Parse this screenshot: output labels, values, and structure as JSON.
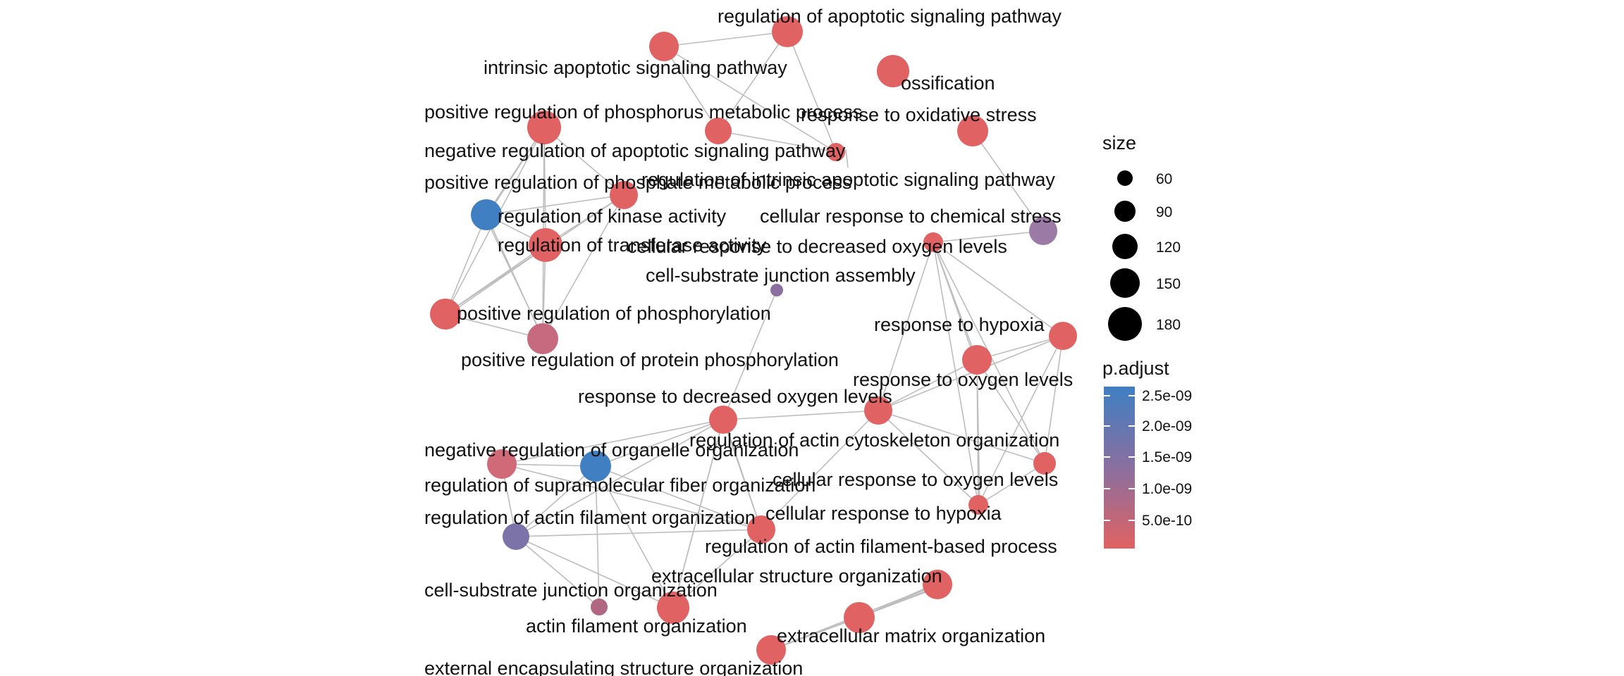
{
  "legend": {
    "size_title": "size",
    "size_values": [
      "60",
      "90",
      "120",
      "150",
      "180"
    ],
    "color_title": "p.adjust",
    "color_ticks": [
      "2.5e-09",
      "2.0e-09",
      "1.5e-09",
      "1.0e-09",
      "5.0e-10"
    ],
    "gradient_top": "#3f7fc2",
    "gradient_mid": "#8a6fa0",
    "gradient_bottom": "#e06262",
    "node_color_low": "#e06262"
  },
  "nodes": [
    {
      "id": "n1",
      "label": "regulation of apoptotic signaling pathway"
    },
    {
      "id": "n2",
      "label": "intrinsic apoptotic signaling pathway"
    },
    {
      "id": "n3",
      "label": "ossification"
    },
    {
      "id": "n4",
      "label": "positive regulation of phosphorus metabolic process"
    },
    {
      "id": "n5",
      "label": "response to oxidative stress"
    },
    {
      "id": "n6",
      "label": "negative regulation of apoptotic signaling pathway"
    },
    {
      "id": "n7",
      "label": "positive regulation of phosphate metabolic process"
    },
    {
      "id": "n8",
      "label": "regulation of intrinsic apoptotic signaling pathway"
    },
    {
      "id": "n9",
      "label": "regulation of kinase activity"
    },
    {
      "id": "n10",
      "label": "cellular response to chemical stress"
    },
    {
      "id": "n11",
      "label": "regulation of transferase activity"
    },
    {
      "id": "n12",
      "label": "cellular response to decreased oxygen levels"
    },
    {
      "id": "n13",
      "label": "cell-substrate junction assembly"
    },
    {
      "id": "n14",
      "label": "positive regulation of phosphorylation"
    },
    {
      "id": "n15",
      "label": "response to hypoxia"
    },
    {
      "id": "n16",
      "label": "positive regulation of protein phosphorylation"
    },
    {
      "id": "n17",
      "label": "response to oxygen levels"
    },
    {
      "id": "n18",
      "label": "response to decreased oxygen levels"
    },
    {
      "id": "n19",
      "label": "regulation of actin cytoskeleton organization"
    },
    {
      "id": "n20",
      "label": "negative regulation of organelle organization"
    },
    {
      "id": "n21",
      "label": "cellular response to oxygen levels"
    },
    {
      "id": "n22",
      "label": "regulation of supramolecular fiber organization"
    },
    {
      "id": "n23",
      "label": "cellular response to hypoxia"
    },
    {
      "id": "n24",
      "label": "regulation of actin filament organization"
    },
    {
      "id": "n25",
      "label": "regulation of actin filament-based process"
    },
    {
      "id": "n26",
      "label": "extracellular structure organization"
    },
    {
      "id": "n27",
      "label": "cell-substrate junction organization"
    },
    {
      "id": "n28",
      "label": "actin filament organization"
    },
    {
      "id": "n29",
      "label": "extracellular matrix organization"
    },
    {
      "id": "n30",
      "label": "external encapsulating structure organization"
    }
  ]
}
